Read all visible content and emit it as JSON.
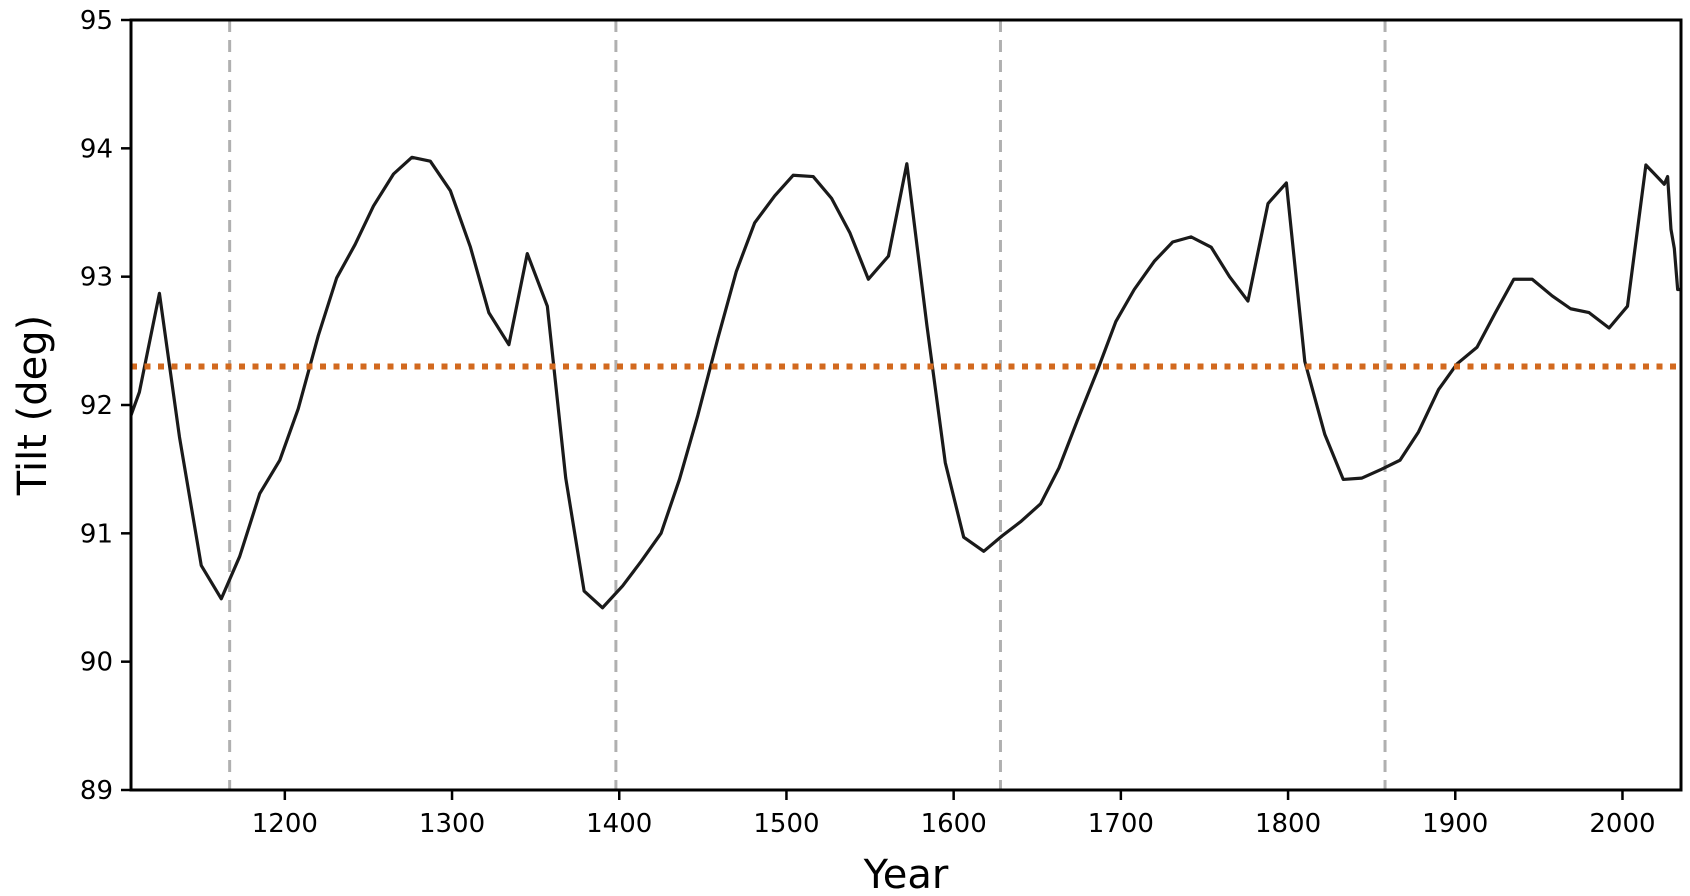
{
  "chart_data": {
    "type": "line",
    "title": "",
    "xlabel": "Year",
    "ylabel": "Tilt (deg)",
    "xlim": [
      1108,
      2035
    ],
    "ylim": [
      89,
      95
    ],
    "xticks": [
      1200,
      1300,
      1400,
      1500,
      1600,
      1700,
      1800,
      1900,
      2000
    ],
    "yticks": [
      89,
      90,
      91,
      92,
      93,
      94,
      95
    ],
    "grid": false,
    "legend": "none",
    "series": [
      {
        "color": "#1a1a1a",
        "style": "solid",
        "x": [
          1108,
          1113,
          1125,
          1137,
          1150,
          1162,
          1173,
          1185,
          1197,
          1208,
          1220,
          1231,
          1242,
          1253,
          1265,
          1276,
          1287,
          1299,
          1311,
          1322,
          1334,
          1345,
          1357,
          1368,
          1379,
          1390,
          1402,
          1413,
          1425,
          1436,
          1447,
          1459,
          1470,
          1481,
          1493,
          1504,
          1516,
          1527,
          1538,
          1549,
          1561,
          1572,
          1584,
          1595,
          1606,
          1618,
          1629,
          1640,
          1652,
          1663,
          1674,
          1686,
          1697,
          1708,
          1720,
          1731,
          1742,
          1754,
          1765,
          1776,
          1788,
          1799,
          1810,
          1822,
          1833,
          1844,
          1856,
          1867,
          1878,
          1890,
          1901,
          1913,
          1924,
          1935,
          1946,
          1958,
          1969,
          1980,
          1992,
          2003,
          2014,
          2025,
          2027,
          2029,
          2031,
          2033,
          2035
        ],
        "y": [
          91.92,
          92.1,
          92.87,
          91.75,
          90.75,
          90.49,
          90.82,
          91.31,
          91.57,
          91.97,
          92.54,
          92.99,
          93.25,
          93.55,
          93.8,
          93.93,
          93.9,
          93.67,
          93.23,
          92.72,
          92.47,
          93.18,
          92.77,
          91.43,
          90.55,
          90.42,
          90.59,
          90.78,
          91.0,
          91.42,
          91.92,
          92.52,
          93.04,
          93.42,
          93.63,
          93.79,
          93.78,
          93.61,
          93.34,
          92.98,
          93.16,
          93.88,
          92.62,
          91.55,
          90.97,
          90.86,
          90.98,
          91.09,
          91.23,
          91.51,
          91.88,
          92.27,
          92.65,
          92.9,
          93.12,
          93.27,
          93.31,
          93.23,
          93.0,
          92.81,
          93.57,
          93.73,
          92.34,
          91.77,
          91.42,
          91.43,
          91.5,
          91.57,
          91.79,
          92.12,
          92.32,
          92.45,
          92.72,
          92.98,
          92.98,
          92.85,
          92.75,
          92.72,
          92.6,
          92.77,
          93.87,
          93.72,
          93.78,
          93.37,
          93.22,
          92.9,
          92.9
        ]
      },
      {
        "color": "#d2691e",
        "style": "dotted",
        "x": [
          1108,
          2035
        ],
        "y": [
          92.3,
          92.3
        ]
      }
    ],
    "vlines": [
      {
        "x": 1167,
        "color": "#b0b0b0",
        "style": "dashed"
      },
      {
        "x": 1398,
        "color": "#b0b0b0",
        "style": "dashed"
      },
      {
        "x": 1628,
        "color": "#b0b0b0",
        "style": "dashed"
      },
      {
        "x": 1858,
        "color": "#b0b0b0",
        "style": "dashed"
      }
    ]
  }
}
